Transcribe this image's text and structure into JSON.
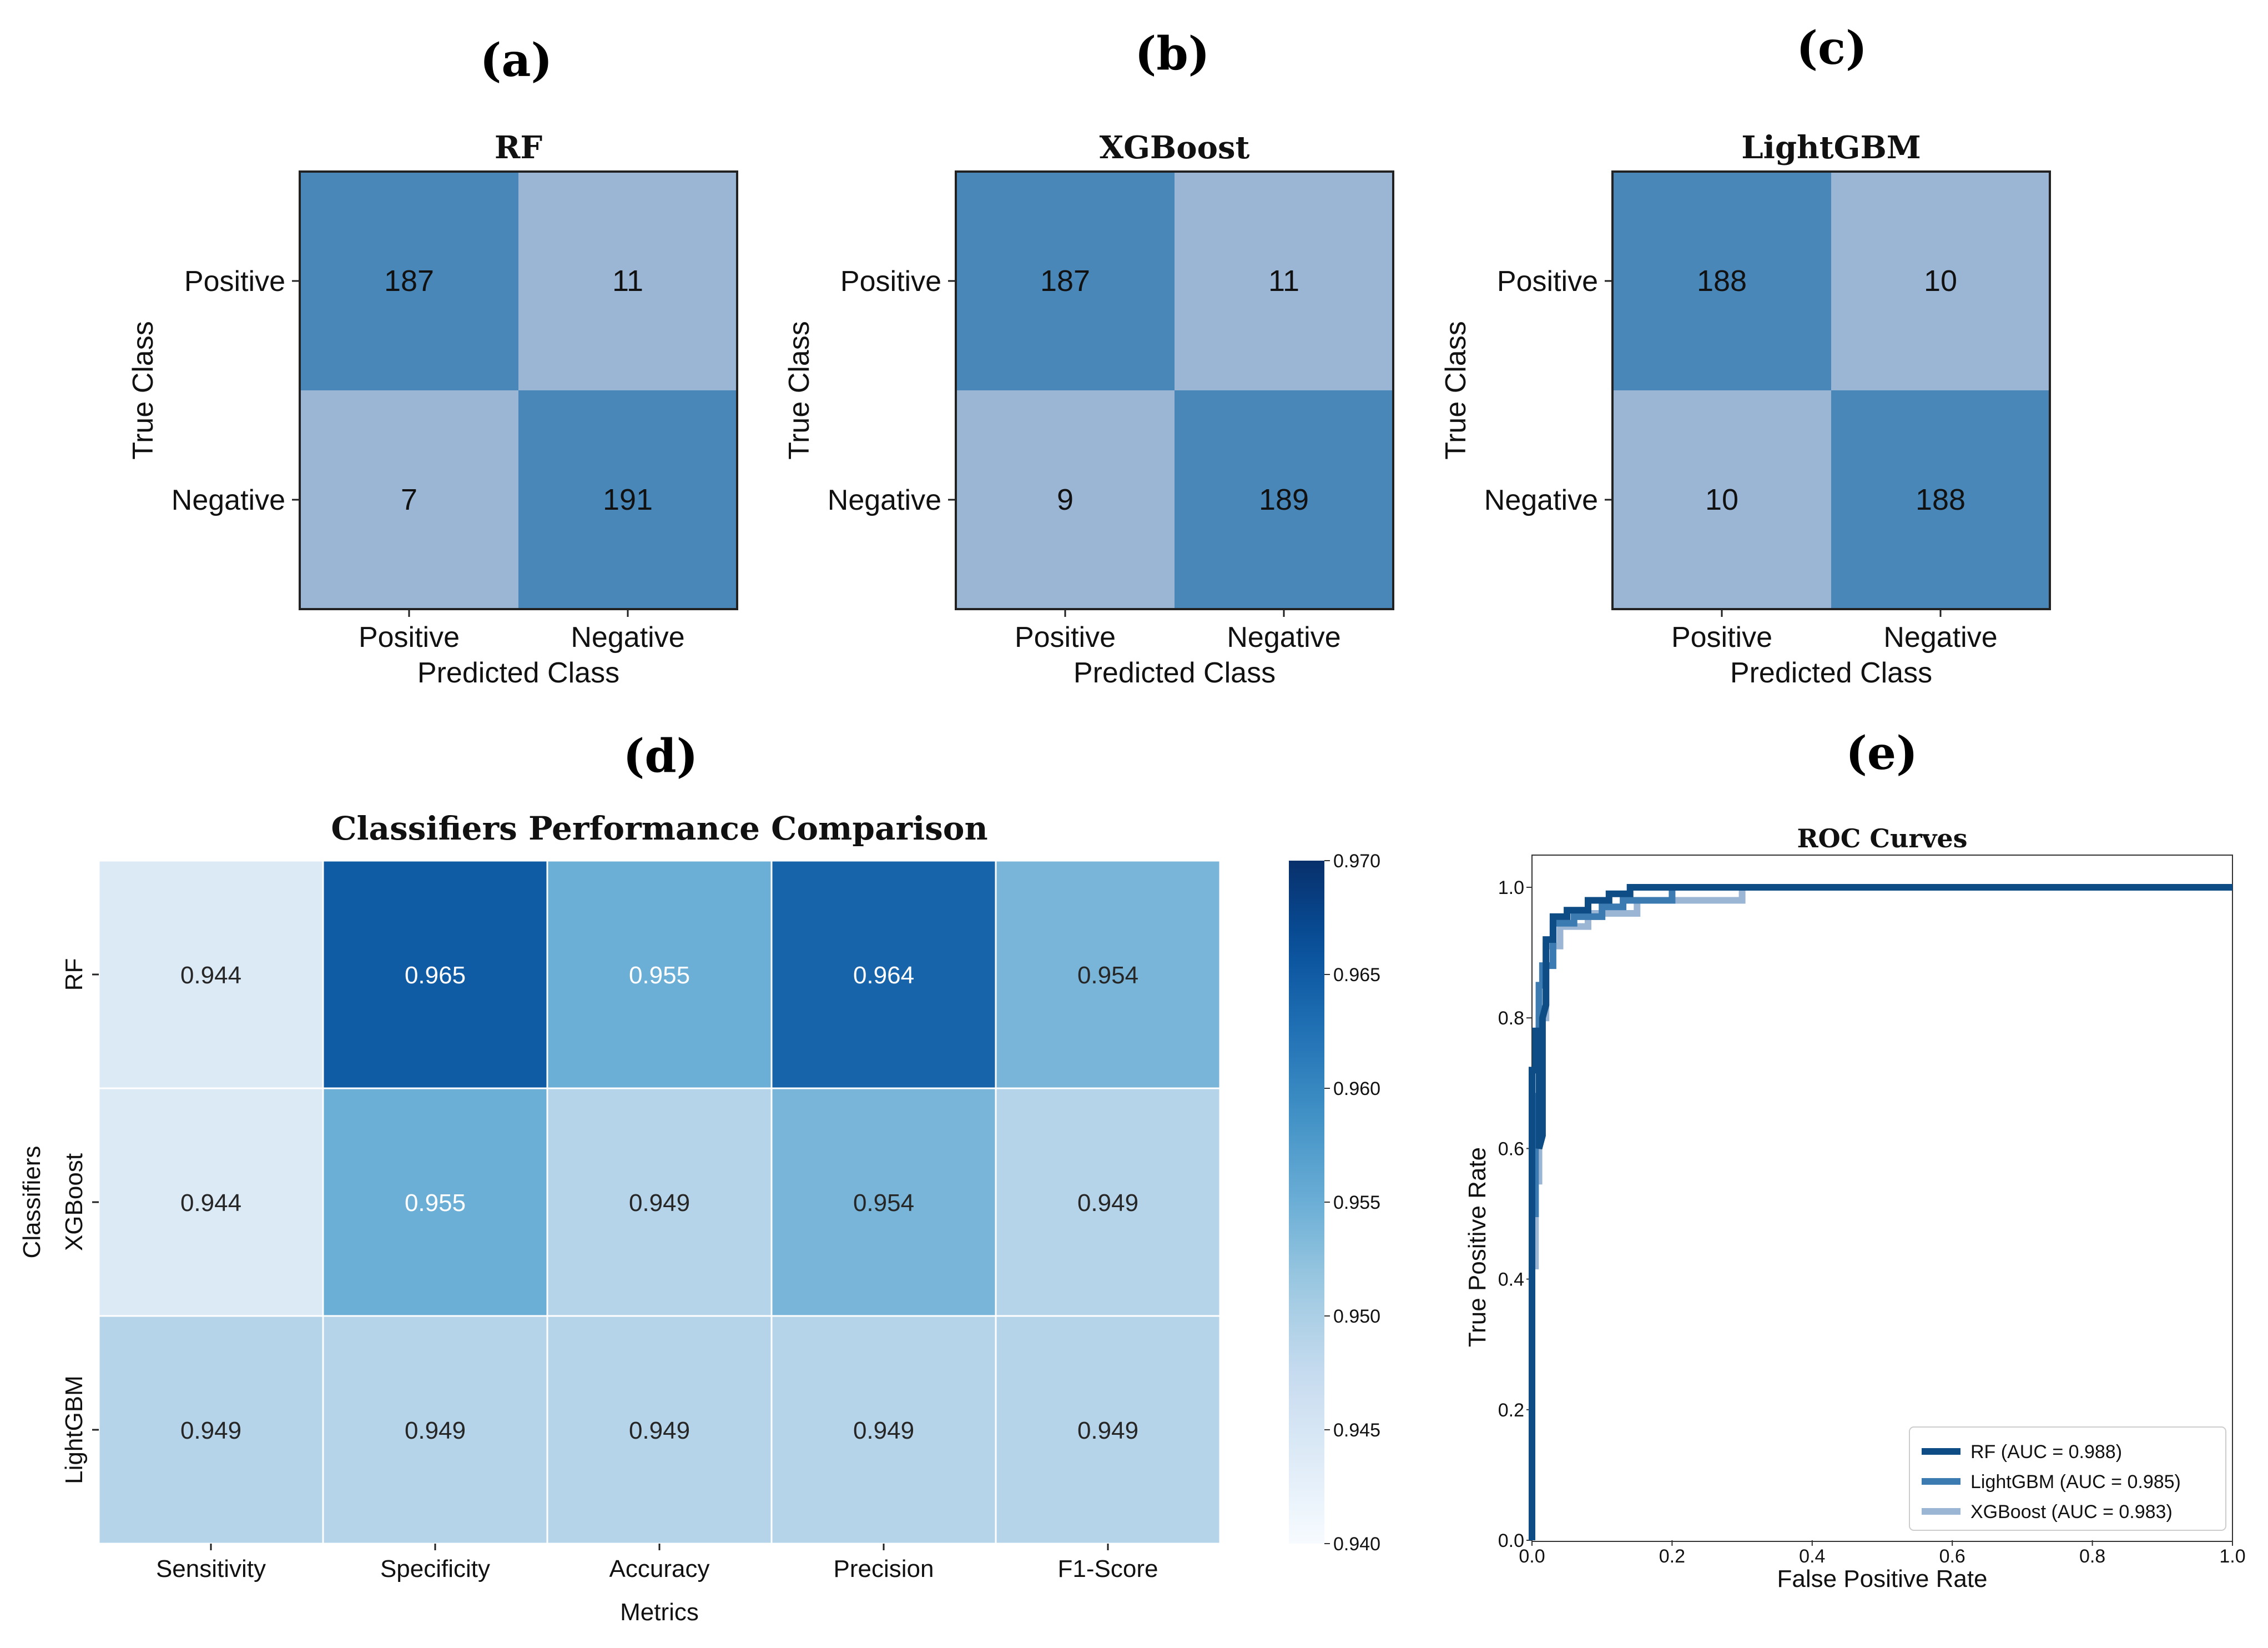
{
  "panel_labels": [
    "(a)",
    "(b)",
    "(c)",
    "(d)",
    "(e)"
  ],
  "chart_data": [
    {
      "type": "heatmap",
      "id": "cm_rf",
      "title": "RF",
      "xlabel": "Predicted Class",
      "ylabel": "True Class",
      "x_categories": [
        "Positive",
        "Negative"
      ],
      "y_categories": [
        "Positive",
        "Negative"
      ],
      "values": [
        [
          187,
          11
        ],
        [
          7,
          191
        ]
      ],
      "colors": {
        "high": "#4887B8",
        "low": "#9BB6D4"
      }
    },
    {
      "type": "heatmap",
      "id": "cm_xgb",
      "title": "XGBoost",
      "xlabel": "Predicted Class",
      "ylabel": "True Class",
      "x_categories": [
        "Positive",
        "Negative"
      ],
      "y_categories": [
        "Positive",
        "Negative"
      ],
      "values": [
        [
          187,
          11
        ],
        [
          9,
          189
        ]
      ],
      "colors": {
        "high": "#4887B8",
        "low": "#9BB6D4"
      }
    },
    {
      "type": "heatmap",
      "id": "cm_lgbm",
      "title": "LightGBM",
      "xlabel": "Predicted Class",
      "ylabel": "True Class",
      "x_categories": [
        "Positive",
        "Negative"
      ],
      "y_categories": [
        "Positive",
        "Negative"
      ],
      "values": [
        [
          188,
          10
        ],
        [
          10,
          188
        ]
      ],
      "colors": {
        "high": "#4887B8",
        "low": "#9BB6D4"
      }
    },
    {
      "type": "heatmap",
      "id": "perf",
      "title": "Classifiers Performance Comparison",
      "xlabel": "Metrics",
      "ylabel": "Classifiers",
      "x_categories": [
        "Sensitivity",
        "Specificity",
        "Accuracy",
        "Precision",
        "F1-Score"
      ],
      "y_categories": [
        "RF",
        "XGBoost",
        "LightGBM"
      ],
      "values": [
        [
          0.944,
          0.965,
          0.955,
          0.964,
          0.954
        ],
        [
          0.944,
          0.955,
          0.949,
          0.954,
          0.949
        ],
        [
          0.949,
          0.949,
          0.949,
          0.949,
          0.949
        ]
      ],
      "value_labels": [
        [
          "0.944",
          "0.965",
          "0.955",
          "0.964",
          "0.954"
        ],
        [
          "0.944",
          "0.955",
          "0.949",
          "0.954",
          "0.949"
        ],
        [
          "0.949",
          "0.949",
          "0.949",
          "0.949",
          "0.949"
        ]
      ],
      "colorbar": {
        "range": [
          0.94,
          0.97
        ],
        "ticks": [
          "0.940",
          "0.945",
          "0.950",
          "0.955",
          "0.960",
          "0.965",
          "0.970"
        ],
        "colormap": "Blues"
      }
    },
    {
      "type": "line",
      "id": "roc",
      "title": "ROC Curves",
      "xlabel": "False Positive Rate",
      "ylabel": "True Positive Rate",
      "xlim": [
        0.0,
        1.0
      ],
      "ylim": [
        0.0,
        1.0
      ],
      "xticks": [
        "0.0",
        "0.2",
        "0.4",
        "0.6",
        "0.8",
        "1.0"
      ],
      "yticks": [
        "0.0",
        "0.2",
        "0.4",
        "0.6",
        "0.8",
        "1.0"
      ],
      "legend_position": "bottom-right",
      "series": [
        {
          "name": "RF (AUC = 0.988)",
          "color": "#0E4C86",
          "x": [
            0.0,
            0.0,
            0.005,
            0.005,
            0.01,
            0.01,
            0.015,
            0.015,
            0.02,
            0.02,
            0.03,
            0.03,
            0.05,
            0.05,
            0.08,
            0.08,
            0.11,
            0.11,
            0.14,
            0.14,
            1.0
          ],
          "y": [
            0.0,
            0.72,
            0.72,
            0.78,
            0.78,
            0.6,
            0.62,
            0.8,
            0.82,
            0.92,
            0.92,
            0.955,
            0.955,
            0.965,
            0.965,
            0.98,
            0.98,
            0.99,
            0.99,
            1.0,
            1.0
          ]
        },
        {
          "name": "LightGBM (AUC = 0.985)",
          "color": "#3C7BB1",
          "x": [
            0.0,
            0.0,
            0.005,
            0.005,
            0.01,
            0.01,
            0.015,
            0.015,
            0.03,
            0.03,
            0.06,
            0.06,
            0.1,
            0.1,
            0.13,
            0.13,
            0.2,
            0.2,
            1.0
          ],
          "y": [
            0.0,
            0.5,
            0.5,
            0.68,
            0.68,
            0.85,
            0.85,
            0.88,
            0.88,
            0.945,
            0.945,
            0.955,
            0.955,
            0.97,
            0.97,
            0.98,
            0.98,
            1.0,
            1.0
          ]
        },
        {
          "name": "XGBoost (AUC = 0.983)",
          "color": "#9BB6D4",
          "x": [
            0.0,
            0.0,
            0.005,
            0.005,
            0.01,
            0.01,
            0.02,
            0.02,
            0.04,
            0.04,
            0.08,
            0.08,
            0.15,
            0.15,
            0.3,
            0.3,
            1.0
          ],
          "y": [
            0.0,
            0.42,
            0.42,
            0.55,
            0.55,
            0.8,
            0.8,
            0.91,
            0.91,
            0.94,
            0.94,
            0.96,
            0.96,
            0.98,
            0.98,
            1.0,
            1.0
          ]
        }
      ]
    }
  ]
}
